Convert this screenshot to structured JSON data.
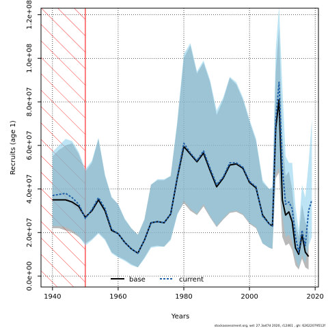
{
  "chart_data": {
    "type": "line",
    "title": "",
    "xlabel": "Years",
    "ylabel": "Recruits (age 1)",
    "xlim": [
      1936.5,
      2021
    ],
    "ylim": [
      -5000000,
      123000000
    ],
    "x_ticks": [
      1940,
      1960,
      1980,
      2000,
      2020
    ],
    "y_ticks": [
      0,
      20000000,
      40000000,
      60000000,
      80000000,
      100000000,
      120000000
    ],
    "y_tick_labels": [
      "0.0e+00",
      "2.0e+07",
      "4.0e+07",
      "6.0e+07",
      "8.0e+07",
      "1.0e+08",
      "1.2e+08"
    ],
    "grid": true,
    "legend_position": "bottom",
    "hatched_region": {
      "x_start": 1936.5,
      "x_end": 1950,
      "color": "#ff0000"
    },
    "footer": "stockassessment.org, wd: 27.3a47d   2020, r12461 , gh: 62622079512f",
    "colors": {
      "base_line": "#000000",
      "current_line": "#1f5fa8",
      "base_band": "#808080",
      "current_band": "#87ceeb",
      "overlap_band": "#8fb0c4"
    },
    "series": [
      {
        "name": "base",
        "x": [
          1940,
          1942,
          1944,
          1946,
          1948,
          1950,
          1952,
          1954,
          1956,
          1958,
          1960,
          1962,
          1964,
          1966,
          1968,
          1970,
          1972,
          1974,
          1976,
          1978,
          1980,
          1982,
          1984,
          1986,
          1988,
          1990,
          1992,
          1994,
          1996,
          1998,
          2000,
          2002,
          2004,
          2006,
          2007,
          2008,
          2009,
          2010,
          2011,
          2012,
          2013,
          2014,
          2015,
          2016,
          2017,
          2018
        ],
        "y": [
          35000000,
          35000000,
          35000000,
          34000000,
          32000000,
          27000000,
          30000000,
          35000000,
          30000000,
          21000000,
          19500000,
          15500000,
          12500000,
          10500000,
          16500000,
          24500000,
          25000000,
          24500000,
          28500000,
          45000000,
          59500000,
          56000000,
          52500000,
          56500000,
          48500000,
          41000000,
          45000000,
          51000000,
          51500000,
          49500000,
          43000000,
          40500000,
          28000000,
          24000000,
          23000000,
          68000000,
          81000000,
          35000000,
          28000000,
          29500000,
          25000000,
          13000000,
          10000000,
          19000000,
          11000000,
          9000000
        ],
        "lower": [
          22000000,
          22000000,
          21000000,
          20000000,
          18000000,
          15000000,
          17000000,
          20000000,
          17000000,
          11000000,
          9000000,
          7500000,
          5500000,
          4000000,
          8500000,
          13500000,
          14000000,
          13500000,
          17000000,
          28500000,
          33500000,
          30000000,
          28000000,
          32000000,
          27000000,
          22500000,
          26000000,
          29000000,
          29500000,
          28000000,
          24000000,
          22000000,
          15000000,
          13000000,
          12500000,
          45000000,
          47500000,
          18000000,
          14000000,
          15000000,
          12000000,
          5000000,
          3000000,
          8000000,
          4000000,
          3000000
        ],
        "upper": [
          55000000,
          58000000,
          60000000,
          61000000,
          56000000,
          48000000,
          52000000,
          63000000,
          46000000,
          36000000,
          33000000,
          26000000,
          22000000,
          19000000,
          26000000,
          42000000,
          44000000,
          44000000,
          46000000,
          70000000,
          100000000,
          106000000,
          93000000,
          98000000,
          89000000,
          74000000,
          81000000,
          91000000,
          88000000,
          81000000,
          71000000,
          62000000,
          43000000,
          40000000,
          40000000,
          94000000,
          114000000,
          64000000,
          46000000,
          48000000,
          40000000,
          24000000,
          18000000,
          33000000,
          25000000,
          20000000
        ]
      },
      {
        "name": "current",
        "x": [
          1940,
          1942,
          1944,
          1946,
          1948,
          1950,
          1952,
          1954,
          1956,
          1958,
          1960,
          1962,
          1964,
          1966,
          1968,
          1970,
          1972,
          1974,
          1976,
          1978,
          1980,
          1982,
          1984,
          1986,
          1988,
          1990,
          1992,
          1994,
          1996,
          1998,
          2000,
          2002,
          2004,
          2006,
          2007,
          2008,
          2009,
          2010,
          2011,
          2012,
          2013,
          2014,
          2015,
          2016,
          2017,
          2018,
          2019
        ],
        "y": [
          37000000,
          37500000,
          38000000,
          36000000,
          33000000,
          26500000,
          30500000,
          36000000,
          31000000,
          21500000,
          19500000,
          15500000,
          12500000,
          10500000,
          16500000,
          24500000,
          25000000,
          24500000,
          28500000,
          45500000,
          61000000,
          56500000,
          53000000,
          57500000,
          49500000,
          42000000,
          45500000,
          52000000,
          52000000,
          50000000,
          43500000,
          41000000,
          27500000,
          24000000,
          23000000,
          72000000,
          89000000,
          50000000,
          33000000,
          34000000,
          31000000,
          18000000,
          11000000,
          21000000,
          14000000,
          30000000,
          35000000
        ],
        "lower": [
          23000000,
          23000000,
          22500000,
          21000000,
          18500000,
          14000000,
          16500000,
          19500000,
          16500000,
          10500000,
          8500000,
          7000000,
          5000000,
          4000000,
          8000000,
          13000000,
          13500000,
          13500000,
          16500000,
          28000000,
          34500000,
          31000000,
          28500000,
          33000000,
          27500000,
          23000000,
          26500000,
          29500000,
          30000000,
          28500000,
          24500000,
          22500000,
          15000000,
          13000000,
          12500000,
          47000000,
          50000000,
          28000000,
          18000000,
          19000000,
          16000000,
          8000000,
          4000000,
          10000000,
          6000000,
          14000000,
          18000000
        ],
        "upper": [
          57000000,
          60000000,
          63000000,
          62000000,
          57000000,
          49000000,
          53000000,
          63500000,
          46500000,
          36500000,
          33000000,
          26500000,
          22000000,
          19000000,
          26000000,
          42000000,
          44500000,
          44500000,
          46000000,
          71000000,
          102000000,
          107000000,
          94000000,
          99000000,
          90000000,
          76000000,
          82000000,
          91500000,
          89000000,
          82000000,
          72000000,
          63000000,
          44000000,
          40000000,
          41000000,
          104000000,
          124000000,
          87000000,
          55000000,
          52000000,
          52000000,
          32000000,
          21000000,
          42000000,
          36000000,
          52000000,
          72000000
        ]
      }
    ]
  }
}
